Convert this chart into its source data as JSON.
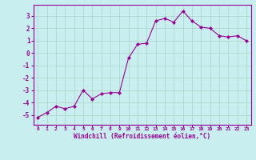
{
  "x": [
    0,
    1,
    2,
    3,
    4,
    5,
    6,
    7,
    8,
    9,
    10,
    11,
    12,
    13,
    14,
    15,
    16,
    17,
    18,
    19,
    20,
    21,
    22,
    23
  ],
  "y": [
    -5.2,
    -4.8,
    -4.3,
    -4.5,
    -4.3,
    -3.0,
    -3.7,
    -3.3,
    -3.2,
    -3.2,
    -0.4,
    0.7,
    0.8,
    2.6,
    2.8,
    2.5,
    3.4,
    2.6,
    2.1,
    2.0,
    1.4,
    1.3,
    1.4,
    1.0
  ],
  "xlabel": "Windchill (Refroidissement éolien,°C)",
  "ylim": [
    -5.8,
    3.9
  ],
  "xlim": [
    -0.5,
    23.5
  ],
  "yticks": [
    -5,
    -4,
    -3,
    -2,
    -1,
    0,
    1,
    2,
    3
  ],
  "xticks": [
    0,
    1,
    2,
    3,
    4,
    5,
    6,
    7,
    8,
    9,
    10,
    11,
    12,
    13,
    14,
    15,
    16,
    17,
    18,
    19,
    20,
    21,
    22,
    23
  ],
  "line_color": "#990099",
  "marker_color": "#990099",
  "bg_color": "#c8eef0",
  "grid_color": "#b0d8cc",
  "axis_color": "#990099",
  "tick_color": "#990099",
  "label_color": "#990099"
}
